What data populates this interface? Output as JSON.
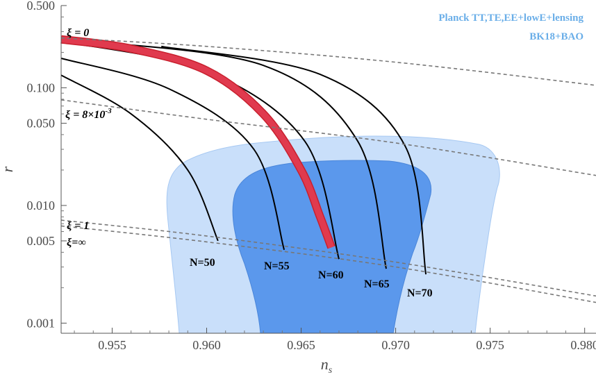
{
  "chart_data": {
    "type": "line",
    "title": "",
    "xlabel": "n",
    "xlabel_sub": "s",
    "ylabel": "r",
    "xlim": [
      0.9523,
      0.9806
    ],
    "ylim": [
      0.00082,
      0.5
    ],
    "yscale": "log",
    "x_ticks": [
      0.955,
      0.96,
      0.965,
      0.97,
      0.975,
      0.98
    ],
    "x_tick_labels": [
      "0.955",
      "0.960",
      "0.965",
      "0.970",
      "0.975",
      "0.980"
    ],
    "y_ticks": [
      0.001,
      0.005,
      0.01,
      0.05,
      0.1,
      0.5
    ],
    "y_tick_labels": [
      "0.001",
      "0.005",
      "0.010",
      "0.050",
      "0.100",
      "0.500"
    ],
    "legend": [
      "Planck TT,TE,EE+lowE+lensing",
      "BK18+BAO"
    ],
    "contours": {
      "outer_68_95": "light",
      "inner_68": "dark",
      "colors": {
        "light": "#c9dffa",
        "light_edge": "#a6c8f2",
        "dark": "#5b98ec",
        "dark_edge": "#4a86da"
      }
    },
    "xi_curves": [
      {
        "label": "ξ = 0",
        "x": [
          0.9523,
          0.96,
          0.97,
          0.9806
        ],
        "y": [
          0.265,
          0.225,
          0.165,
          0.105
        ]
      },
      {
        "label": "ξ = 8×10",
        "label_sup": "-3",
        "x": [
          0.9523,
          0.96,
          0.97,
          0.9806
        ],
        "y": [
          0.079,
          0.054,
          0.034,
          0.018
        ]
      },
      {
        "label": "ξ = 1",
        "x": [
          0.9523,
          0.96,
          0.97,
          0.9806
        ],
        "y": [
          0.0075,
          0.0055,
          0.0033,
          0.0017
        ]
      },
      {
        "label": "ξ=∞",
        "x": [
          0.9523,
          0.96,
          0.97,
          0.9806
        ],
        "y": [
          0.0067,
          0.0049,
          0.003,
          0.0015
        ]
      }
    ],
    "n_curves": [
      {
        "label": "N=50",
        "x": [
          0.9523,
          0.956,
          0.959,
          0.9606
        ],
        "y": [
          0.128,
          0.06,
          0.02,
          0.005
        ]
      },
      {
        "label": "N=55",
        "x": [
          0.9523,
          0.958,
          0.9625,
          0.9641
        ],
        "y": [
          0.178,
          0.098,
          0.03,
          0.0042
        ]
      },
      {
        "label": "N=60",
        "x": [
          0.9523,
          0.96,
          0.9652,
          0.967
        ],
        "y": [
          0.248,
          0.138,
          0.035,
          0.0035
        ]
      },
      {
        "label": "N=65",
        "x": [
          0.953,
          0.963,
          0.968,
          0.9695
        ],
        "y": [
          0.255,
          0.155,
          0.035,
          0.0029
        ]
      },
      {
        "label": "N=70",
        "x": [
          0.9576,
          0.966,
          0.9705,
          0.9716
        ],
        "y": [
          0.225,
          0.13,
          0.032,
          0.0026
        ]
      }
    ],
    "highlight_band": {
      "color": "#e03a4e",
      "x": [
        0.9523,
        0.956,
        0.96,
        0.963,
        0.965,
        0.966,
        0.9666
      ],
      "y": [
        0.258,
        0.215,
        0.14,
        0.06,
        0.02,
        0.008,
        0.0044
      ]
    }
  }
}
